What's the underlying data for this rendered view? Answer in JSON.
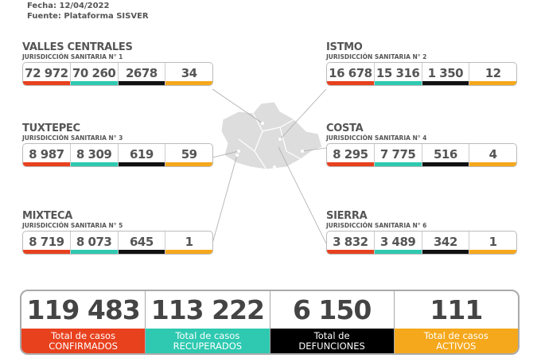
{
  "header": {
    "fecha": "Fecha: 12/04/2022",
    "fuente": "Fuente: Plataforma SISVER"
  },
  "regions": [
    {
      "name": "VALLES CENTRALES",
      "sub": "JURISDICCIÓN SANITARIA N° 1",
      "values": [
        "72 972",
        "70 260",
        "2678",
        "34"
      ]
    },
    {
      "name": "ISTMO",
      "sub": "JURISDICCIÓN SANITARIA N° 2",
      "values": [
        "16 678",
        "15 316",
        "1 350",
        "12"
      ]
    },
    {
      "name": "TUXTEPEC",
      "sub": "JURISDICCIÓN SANITARIA N° 3",
      "values": [
        "8 987",
        "8 309",
        "619",
        "59"
      ]
    },
    {
      "name": "COSTA",
      "sub": "JURISDICCIÓN SANITARIA N° 4",
      "values": [
        "8 295",
        "7 775",
        "516",
        "4"
      ]
    },
    {
      "name": "MIXTECA",
      "sub": "JURISDICCIÓN SANITARIA N° 5",
      "values": [
        "8 719",
        "8 073",
        "645",
        "1"
      ]
    },
    {
      "name": "SIERRA",
      "sub": "JURISDICCIÓN SANITARIA N° 6",
      "values": [
        "3 832",
        "3 489",
        "342",
        "1"
      ]
    }
  ],
  "totals": [
    {
      "value": "119 483",
      "line1": "Total de casos",
      "line2": "CONFIRMADOS"
    },
    {
      "value": "113 222",
      "line1": "Total de casos",
      "line2": "RECUPERADOS"
    },
    {
      "value": "6 150",
      "line1": "Total de",
      "line2": "DEFUNCIONES"
    },
    {
      "value": "111",
      "line1": "Total de casos",
      "line2": "ACTIVOS"
    }
  ],
  "colors": {
    "confirmados": "#e8411e",
    "recuperados": "#2ec9b0",
    "defunciones": "#111111",
    "activos": "#f5a81c"
  }
}
